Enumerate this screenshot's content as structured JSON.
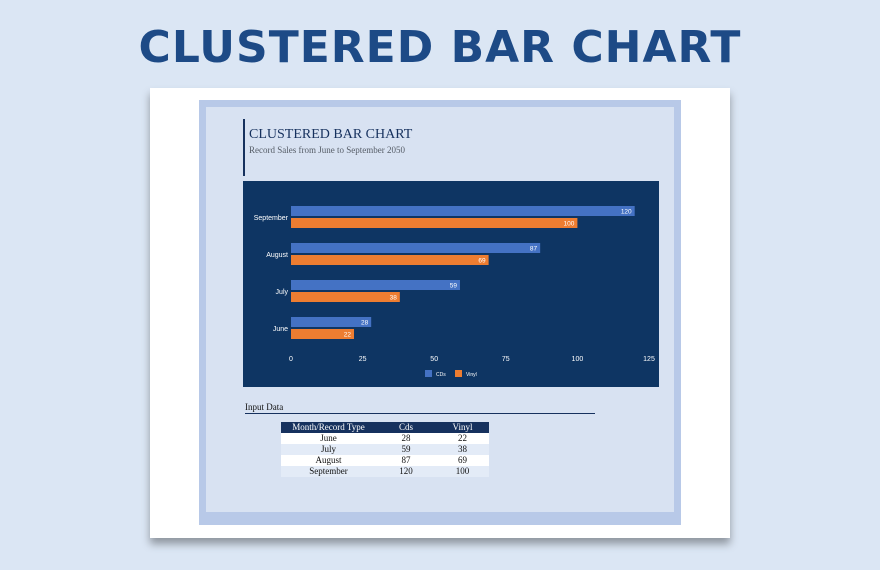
{
  "banner": {
    "title": "CLUSTERED BAR CHART"
  },
  "chart_data": {
    "type": "bar",
    "orientation": "horizontal",
    "title": "CLUSTERED BAR CHART",
    "subtitle": "Record Sales from June to September 2050",
    "categories": [
      "June",
      "July",
      "August",
      "September"
    ],
    "series": [
      {
        "name": "CDs",
        "values": [
          28,
          59,
          87,
          120
        ],
        "color": "#4472c4"
      },
      {
        "name": "Vinyl",
        "values": [
          22,
          38,
          69,
          100
        ],
        "color": "#ed7d31"
      }
    ],
    "xlim": [
      0,
      125
    ],
    "xticks": [
      "0",
      "25",
      "50",
      "75",
      "100",
      "125"
    ],
    "legend_position": "bottom",
    "grid": false,
    "background": "#0e3563"
  },
  "input_data": {
    "heading": "Input Data",
    "headers": [
      "Month/Record Type",
      "Cds",
      "Vinyl"
    ],
    "rows": [
      [
        "June",
        "28",
        "22"
      ],
      [
        "July",
        "59",
        "38"
      ],
      [
        "August",
        "87",
        "69"
      ],
      [
        "September",
        "120",
        "100"
      ]
    ]
  }
}
